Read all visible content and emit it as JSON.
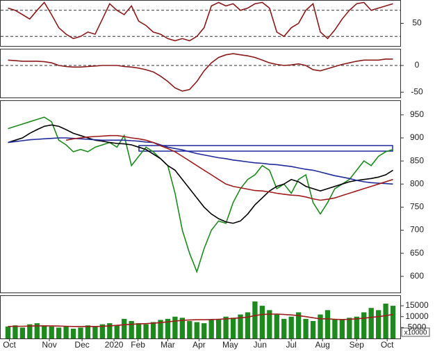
{
  "chart_data": [
    {
      "type": "line",
      "ylim": [
        -2,
        102
      ],
      "yticks": [
        50
      ],
      "ref_lines": [
        80,
        20
      ],
      "x": [
        0,
        1,
        2,
        3,
        4,
        5,
        6,
        7,
        8,
        9,
        10,
        11,
        12,
        13,
        14,
        15,
        16,
        17,
        18,
        19,
        20,
        21,
        22,
        23,
        24,
        25,
        26,
        27,
        28,
        29,
        30,
        31,
        32,
        33,
        34,
        35,
        36,
        37,
        38,
        39,
        40,
        41,
        42,
        43,
        44,
        45,
        46,
        47,
        48,
        49,
        50,
        51,
        52,
        53
      ],
      "xlim": [
        -1,
        54
      ],
      "series": [
        {
          "color": "#8b1a1a",
          "values": [
            85,
            80,
            70,
            60,
            80,
            98,
            70,
            40,
            25,
            15,
            20,
            30,
            25,
            60,
            95,
            80,
            70,
            90,
            55,
            45,
            30,
            25,
            15,
            10,
            15,
            10,
            20,
            40,
            90,
            98,
            90,
            95,
            80,
            85,
            95,
            98,
            85,
            30,
            20,
            40,
            50,
            80,
            95,
            30,
            15,
            35,
            60,
            80,
            95,
            98,
            80,
            85,
            90,
            95
          ]
        }
      ]
    },
    {
      "type": "line",
      "ylim": [
        -60,
        30
      ],
      "yticks": [
        0,
        -50
      ],
      "ref_lines": [
        0
      ],
      "x": [
        0,
        1,
        2,
        3,
        4,
        5,
        6,
        7,
        8,
        9,
        10,
        11,
        12,
        13,
        14,
        15,
        16,
        17,
        18,
        19,
        20,
        21,
        22,
        23,
        24,
        25,
        26,
        27,
        28,
        29,
        30,
        31,
        32,
        33,
        34,
        35,
        36,
        37,
        38,
        39,
        40,
        41,
        42,
        43,
        44,
        45,
        46,
        47,
        48,
        49,
        50,
        51,
        52,
        53
      ],
      "xlim": [
        -1,
        54
      ],
      "series": [
        {
          "color": "#8b1a1a",
          "values": [
            10,
            9,
            8,
            8,
            8,
            7,
            5,
            0,
            -2,
            -3,
            -3,
            -2,
            -1,
            0,
            0,
            0,
            -2,
            -3,
            -5,
            -8,
            -12,
            -20,
            -30,
            -42,
            -48,
            -45,
            -30,
            -10,
            5,
            15,
            20,
            22,
            20,
            18,
            15,
            10,
            5,
            2,
            0,
            1,
            3,
            0,
            -8,
            -10,
            -6,
            -2,
            2,
            5,
            8,
            10,
            10,
            10,
            12,
            12
          ]
        }
      ]
    },
    {
      "type": "line",
      "ylim": [
        565,
        980
      ],
      "yticks": [
        600,
        650,
        700,
        750,
        800,
        850,
        900,
        950
      ],
      "x": [
        0,
        1,
        2,
        3,
        4,
        5,
        6,
        7,
        8,
        9,
        10,
        11,
        12,
        13,
        14,
        15,
        16,
        17,
        18,
        19,
        20,
        21,
        22,
        23,
        24,
        25,
        26,
        27,
        28,
        29,
        30,
        31,
        32,
        33,
        34,
        35,
        36,
        37,
        38,
        39,
        40,
        41,
        42,
        43,
        44,
        45,
        46,
        47,
        48,
        49,
        50,
        51,
        52,
        53
      ],
      "xlim": [
        -1,
        54
      ],
      "series": [
        {
          "color": "#1e8a1e",
          "values": [
            920,
            925,
            930,
            935,
            940,
            945,
            935,
            895,
            885,
            870,
            875,
            870,
            880,
            885,
            890,
            880,
            905,
            840,
            860,
            880,
            870,
            855,
            840,
            780,
            700,
            650,
            610,
            660,
            700,
            720,
            715,
            760,
            790,
            810,
            820,
            840,
            830,
            790,
            800,
            780,
            810,
            820,
            760,
            735,
            760,
            790,
            800,
            810,
            830,
            850,
            840,
            860,
            870,
            875
          ]
        },
        {
          "color": "#000000",
          "values": [
            890,
            895,
            900,
            910,
            918,
            925,
            928,
            925,
            918,
            910,
            905,
            900,
            895,
            893,
            890,
            888,
            887,
            885,
            880,
            875,
            865,
            855,
            840,
            830,
            810,
            790,
            770,
            750,
            735,
            725,
            718,
            715,
            720,
            735,
            755,
            770,
            785,
            795,
            800,
            810,
            805,
            795,
            790,
            785,
            790,
            795,
            800,
            805,
            808,
            810,
            812,
            815,
            820,
            830
          ]
        },
        {
          "color": "#1f2a9c",
          "values": [
            890,
            892,
            894,
            896,
            897,
            898,
            899,
            900,
            900,
            899,
            898,
            897,
            896,
            895,
            895,
            895,
            895,
            894,
            893,
            891,
            890,
            885,
            880,
            877,
            874,
            870,
            866,
            863,
            860,
            857,
            855,
            852,
            850,
            848,
            846,
            845,
            843,
            842,
            840,
            838,
            835,
            832,
            830,
            826,
            822,
            818,
            815,
            812,
            808,
            805,
            803,
            802,
            801,
            800
          ]
        },
        {
          "color": "#a01c1c",
          "values": [
            null,
            null,
            null,
            null,
            null,
            null,
            null,
            null,
            895,
            898,
            900,
            902,
            903,
            904,
            905,
            905,
            903,
            900,
            898,
            895,
            890,
            883,
            877,
            870,
            860,
            850,
            840,
            830,
            820,
            810,
            800,
            795,
            792,
            789,
            786,
            785,
            783,
            780,
            778,
            776,
            775,
            772,
            768,
            765,
            767,
            770,
            775,
            780,
            785,
            790,
            795,
            800,
            805,
            810
          ]
        }
      ]
    },
    {
      "type": "bar",
      "ylim": [
        0,
        19500
      ],
      "yticks": [
        5000,
        10000,
        15000
      ],
      "y_unit_label": "x10000",
      "x": [
        0,
        1,
        2,
        3,
        4,
        5,
        6,
        7,
        8,
        9,
        10,
        11,
        12,
        13,
        14,
        15,
        16,
        17,
        18,
        19,
        20,
        21,
        22,
        23,
        24,
        25,
        26,
        27,
        28,
        29,
        30,
        31,
        32,
        33,
        34,
        35,
        36,
        37,
        38,
        39,
        40,
        41,
        42,
        43,
        44,
        45,
        46,
        47,
        48,
        49,
        50,
        51,
        52,
        53
      ],
      "xlim": [
        -1,
        54
      ],
      "xticks": [
        {
          "value": 0.2,
          "label": "Oct"
        },
        {
          "value": 5.7,
          "label": "Nov"
        },
        {
          "value": 10.2,
          "label": "Dec"
        },
        {
          "value": 14.6,
          "label": "2020"
        },
        {
          "value": 17.9,
          "label": "Feb"
        },
        {
          "value": 22,
          "label": "Mar"
        },
        {
          "value": 26.3,
          "label": "Apr"
        },
        {
          "value": 30.6,
          "label": "May"
        },
        {
          "value": 34.7,
          "label": "Jun"
        },
        {
          "value": 39,
          "label": "Jul"
        },
        {
          "value": 43.3,
          "label": "Aug"
        },
        {
          "value": 48,
          "label": "Sep"
        },
        {
          "value": 52.2,
          "label": "Oct"
        }
      ],
      "series": [
        {
          "type": "bar",
          "color": "#1e8a1e",
          "values": [
            5500,
            6000,
            5000,
            6500,
            7000,
            6000,
            5500,
            5000,
            5500,
            4500,
            5000,
            6000,
            5500,
            6500,
            7000,
            6000,
            9000,
            8000,
            7000,
            6500,
            7500,
            8500,
            9000,
            10000,
            9500,
            8000,
            7500,
            7000,
            8500,
            9000,
            10000,
            9500,
            11000,
            12000,
            17000,
            15000,
            13000,
            11000,
            9000,
            10000,
            12000,
            9000,
            8000,
            11000,
            13000,
            9000,
            8500,
            9500,
            10000,
            12000,
            14000,
            13000,
            16000,
            15000
          ]
        },
        {
          "type": "line",
          "color": "#a01c1c",
          "values": [
            5500,
            5600,
            5600,
            5700,
            5800,
            5800,
            5800,
            5700,
            5600,
            5500,
            5500,
            5500,
            5500,
            5600,
            5800,
            6000,
            6300,
            6500,
            6700,
            6800,
            7000,
            7300,
            7600,
            8000,
            8300,
            8500,
            8600,
            8600,
            8700,
            8800,
            9000,
            9200,
            9500,
            9800,
            10500,
            11000,
            11200,
            11200,
            11000,
            10800,
            10500,
            10000,
            9500,
            9000,
            9000,
            8800,
            8700,
            8800,
            9000,
            9300,
            9700,
            10000,
            10500,
            11000
          ]
        }
      ]
    }
  ]
}
